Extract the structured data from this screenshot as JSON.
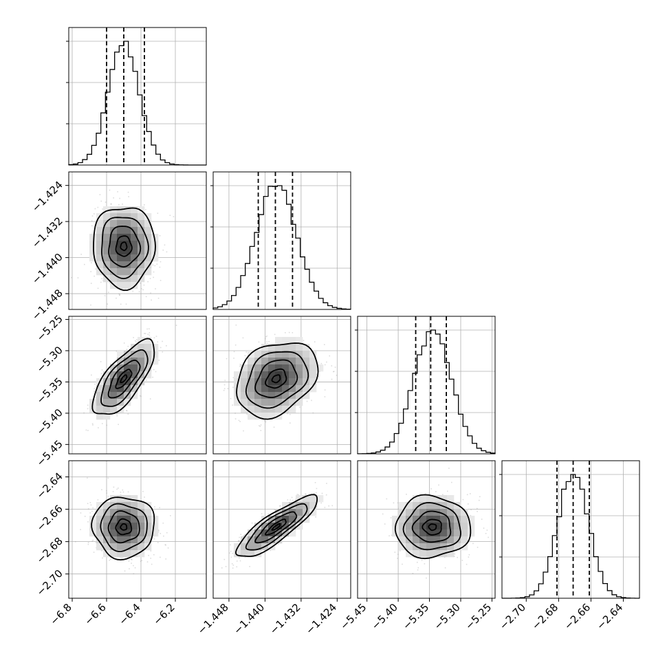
{
  "chart_data": {
    "type": "corner",
    "parameters": [
      {
        "ticks": [
          -6.8,
          -6.6,
          -6.4,
          -6.2
        ],
        "tick_labels": [
          "−6.8",
          "−6.6",
          "−6.4",
          "−6.2"
        ],
        "range": [
          -6.82,
          -6.02
        ],
        "mean": -6.5,
        "sd": 0.09,
        "quantiles": [
          -6.6,
          -6.5,
          -6.38
        ]
      },
      {
        "ticks": [
          -1.448,
          -1.44,
          -1.432,
          -1.424
        ],
        "tick_labels": [
          "−1.448",
          "−1.440",
          "−1.432",
          "−1.424"
        ],
        "range": [
          -1.4515,
          -1.421
        ],
        "mean": -1.4375,
        "sd": 0.0045,
        "quantiles": [
          -1.4415,
          -1.4377,
          -1.4339
        ]
      },
      {
        "ticks": [
          -5.45,
          -5.4,
          -5.35,
          -5.3,
          -5.25
        ],
        "tick_labels": [
          "−5.45",
          "−5.40",
          "−5.35",
          "−5.30",
          "−5.25"
        ],
        "range": [
          -5.465,
          -5.245
        ],
        "mean": -5.345,
        "sd": 0.03,
        "quantiles": [
          -5.372,
          -5.348,
          -5.323
        ]
      },
      {
        "ticks": [
          -2.7,
          -2.68,
          -2.66,
          -2.64
        ],
        "tick_labels": [
          "−2.70",
          "−2.68",
          "−2.66",
          "−2.64"
        ],
        "range": [
          -2.715,
          -2.63
        ],
        "mean": -2.671,
        "sd": 0.0095,
        "quantiles": [
          -2.681,
          -2.671,
          -2.661
        ]
      }
    ],
    "correlations": [
      [
        0,
        1,
        0.0
      ],
      [
        0,
        2,
        0.72
      ],
      [
        1,
        2,
        0.28
      ],
      [
        0,
        3,
        0.0
      ],
      [
        1,
        3,
        0.85
      ],
      [
        2,
        3,
        0.0
      ]
    ],
    "grid": true,
    "colors": {
      "scatter": "#9a9a9a",
      "density": "#000000",
      "lines": "#000000"
    }
  }
}
